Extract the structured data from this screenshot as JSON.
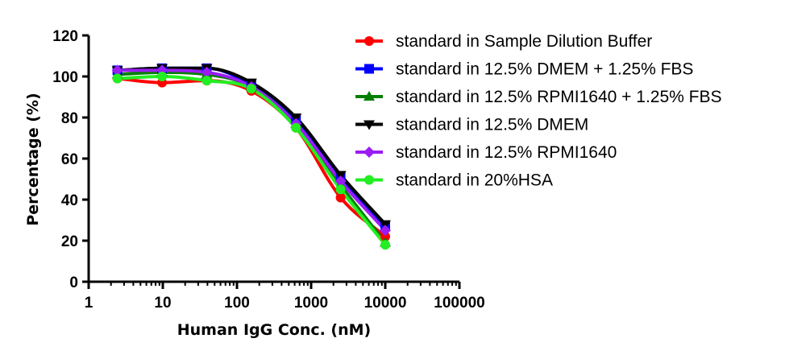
{
  "chart_data": {
    "type": "line",
    "xscale": "log",
    "xlabel": "Human IgG Conc. (nM)",
    "ylabel": "Percentage (%)",
    "xlim": [
      1,
      100000
    ],
    "ylim": [
      0,
      120
    ],
    "xticks": [
      1,
      10,
      100,
      1000,
      10000,
      100000
    ],
    "xtick_labels": [
      "1",
      "10",
      "100",
      "1000",
      "10000",
      "100000"
    ],
    "yticks": [
      0,
      20,
      40,
      60,
      80,
      100,
      120
    ],
    "ytick_labels": [
      "0",
      "20",
      "40",
      "60",
      "80",
      "100",
      "120"
    ],
    "legend_position": "top-right",
    "grid": false,
    "x": [
      2.44,
      9.77,
      39.1,
      156.25,
      625,
      2500,
      10000
    ],
    "series": [
      {
        "name": "standard in Sample Dilution Buffer",
        "color": "#ff0000",
        "marker": "circle",
        "values": [
          99,
          97,
          98,
          93,
          75,
          41,
          22
        ]
      },
      {
        "name": "standard in 12.5% DMEM + 1.25% FBS",
        "color": "#0000ff",
        "marker": "square",
        "values": [
          103,
          104,
          104,
          96,
          79,
          51,
          27
        ]
      },
      {
        "name": "standard in 12.5% RPMI1640 + 1.25% FBS",
        "color": "#007f00",
        "marker": "triangle-up",
        "values": [
          101,
          102,
          101,
          95,
          77,
          47,
          19
        ]
      },
      {
        "name": "standard in 12.5% DMEM",
        "color": "#000000",
        "marker": "triangle-down",
        "values": [
          103,
          104,
          104,
          97,
          80,
          52,
          28
        ]
      },
      {
        "name": "standard in 12.5% RPMI1640",
        "color": "#9a1df2",
        "marker": "diamond",
        "values": [
          103,
          103,
          102,
          95,
          77,
          49,
          25
        ]
      },
      {
        "name": "standard in 20%HSA",
        "color": "#22ee22",
        "marker": "circle",
        "values": [
          99,
          100,
          98,
          94,
          75,
          45,
          18
        ]
      }
    ]
  }
}
